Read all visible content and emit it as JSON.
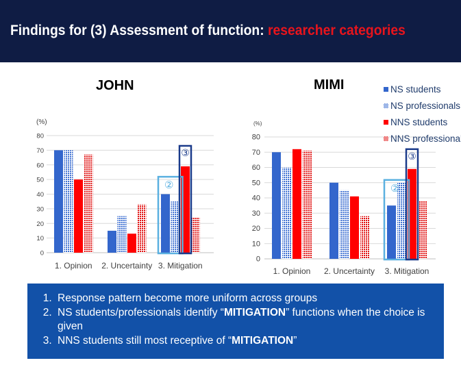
{
  "slide": {
    "title_prefix": "Findings for (3) Assessment of function: ",
    "title_highlight": "researcher categories"
  },
  "colors": {
    "ns_students": "#3366cc",
    "ns_professionals": "#3d6fd1",
    "nns_students": "#ff0000",
    "nns_professionals": "#e01010",
    "box_2": "#5ab0e0",
    "box_3": "#1a3a8a"
  },
  "legend": [
    {
      "label": "NS students",
      "pattern": "solid",
      "color": "#3366cc"
    },
    {
      "label": "NS professionals",
      "pattern": "dotted",
      "color": "#3d6fd1"
    },
    {
      "label": "NNS students",
      "pattern": "solid",
      "color": "#ff0000"
    },
    {
      "label": "NNS professionals",
      "pattern": "dotted",
      "color": "#e01010"
    }
  ],
  "chart_data": [
    {
      "type": "bar",
      "title": "JOHN",
      "ylabel": "(%)",
      "ylim": [
        0,
        80
      ],
      "yticks": [
        0,
        10,
        20,
        30,
        40,
        50,
        60,
        70,
        80
      ],
      "categories": [
        "1. Opinion",
        "2. Uncertainty",
        "3. Mitigation"
      ],
      "series": [
        {
          "name": "NS students",
          "values": [
            70,
            15,
            40
          ]
        },
        {
          "name": "NS professionals",
          "values": [
            70,
            25,
            35
          ]
        },
        {
          "name": "NNS students",
          "values": [
            50,
            13,
            59
          ]
        },
        {
          "name": "NNS professionals",
          "values": [
            67,
            33,
            24
          ]
        }
      ],
      "annotations": [
        {
          "label": "②",
          "category": "3. Mitigation",
          "series": [
            "NS students",
            "NS professionals"
          ]
        },
        {
          "label": "③",
          "category": "3. Mitigation",
          "series": [
            "NNS students"
          ]
        }
      ]
    },
    {
      "type": "bar",
      "title": "MIMI",
      "ylabel": "(%)",
      "ylim": [
        0,
        80
      ],
      "yticks": [
        0,
        10,
        20,
        30,
        40,
        50,
        60,
        70,
        80
      ],
      "categories": [
        "1. Opinion",
        "2. Uncertainty",
        "3. Mitigation"
      ],
      "series": [
        {
          "name": "NS students",
          "values": [
            70,
            50,
            35
          ]
        },
        {
          "name": "NS professionals",
          "values": [
            60,
            45,
            50
          ]
        },
        {
          "name": "NNS students",
          "values": [
            72,
            41,
            59
          ]
        },
        {
          "name": "NNS professionals",
          "values": [
            71,
            28,
            38
          ]
        }
      ],
      "annotations": [
        {
          "label": "②",
          "category": "3. Mitigation",
          "series": [
            "NS students",
            "NS professionals"
          ]
        },
        {
          "label": "③",
          "category": "3. Mitigation",
          "series": [
            "NNS students"
          ]
        }
      ]
    }
  ],
  "findings": [
    {
      "parts": [
        {
          "text": "Response pattern become more uniform across groups",
          "bold": false
        }
      ]
    },
    {
      "parts": [
        {
          "text": "NS students/professionals identify “",
          "bold": false
        },
        {
          "text": "MITIGATION",
          "bold": true
        },
        {
          "text": "” functions when the choice is given",
          "bold": false
        }
      ]
    },
    {
      "parts": [
        {
          "text": "NNS students still most receptive of  “",
          "bold": false
        },
        {
          "text": "MITIGATION",
          "bold": true
        },
        {
          "text": "”",
          "bold": false
        }
      ]
    }
  ]
}
